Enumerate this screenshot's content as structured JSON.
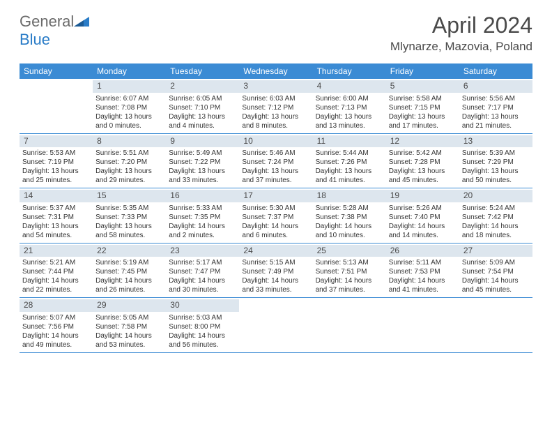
{
  "logo": {
    "textGray": "General",
    "textBlue": "Blue"
  },
  "title": "April 2024",
  "location": "Mlynarze, Mazovia, Poland",
  "colors": {
    "headerBar": "#3b8bd4",
    "dayNumBg": "#dde6ee",
    "borderColor": "#3b8bd4",
    "textColor": "#333333",
    "titleColor": "#4a4a4a",
    "logoGray": "#6b6b6b",
    "logoBlue": "#2a7cc7",
    "background": "#ffffff"
  },
  "dayNames": [
    "Sunday",
    "Monday",
    "Tuesday",
    "Wednesday",
    "Thursday",
    "Friday",
    "Saturday"
  ],
  "weeks": [
    [
      {
        "num": "",
        "lines": []
      },
      {
        "num": "1",
        "lines": [
          "Sunrise: 6:07 AM",
          "Sunset: 7:08 PM",
          "Daylight: 13 hours and 0 minutes."
        ]
      },
      {
        "num": "2",
        "lines": [
          "Sunrise: 6:05 AM",
          "Sunset: 7:10 PM",
          "Daylight: 13 hours and 4 minutes."
        ]
      },
      {
        "num": "3",
        "lines": [
          "Sunrise: 6:03 AM",
          "Sunset: 7:12 PM",
          "Daylight: 13 hours and 8 minutes."
        ]
      },
      {
        "num": "4",
        "lines": [
          "Sunrise: 6:00 AM",
          "Sunset: 7:13 PM",
          "Daylight: 13 hours and 13 minutes."
        ]
      },
      {
        "num": "5",
        "lines": [
          "Sunrise: 5:58 AM",
          "Sunset: 7:15 PM",
          "Daylight: 13 hours and 17 minutes."
        ]
      },
      {
        "num": "6",
        "lines": [
          "Sunrise: 5:56 AM",
          "Sunset: 7:17 PM",
          "Daylight: 13 hours and 21 minutes."
        ]
      }
    ],
    [
      {
        "num": "7",
        "lines": [
          "Sunrise: 5:53 AM",
          "Sunset: 7:19 PM",
          "Daylight: 13 hours and 25 minutes."
        ]
      },
      {
        "num": "8",
        "lines": [
          "Sunrise: 5:51 AM",
          "Sunset: 7:20 PM",
          "Daylight: 13 hours and 29 minutes."
        ]
      },
      {
        "num": "9",
        "lines": [
          "Sunrise: 5:49 AM",
          "Sunset: 7:22 PM",
          "Daylight: 13 hours and 33 minutes."
        ]
      },
      {
        "num": "10",
        "lines": [
          "Sunrise: 5:46 AM",
          "Sunset: 7:24 PM",
          "Daylight: 13 hours and 37 minutes."
        ]
      },
      {
        "num": "11",
        "lines": [
          "Sunrise: 5:44 AM",
          "Sunset: 7:26 PM",
          "Daylight: 13 hours and 41 minutes."
        ]
      },
      {
        "num": "12",
        "lines": [
          "Sunrise: 5:42 AM",
          "Sunset: 7:28 PM",
          "Daylight: 13 hours and 45 minutes."
        ]
      },
      {
        "num": "13",
        "lines": [
          "Sunrise: 5:39 AM",
          "Sunset: 7:29 PM",
          "Daylight: 13 hours and 50 minutes."
        ]
      }
    ],
    [
      {
        "num": "14",
        "lines": [
          "Sunrise: 5:37 AM",
          "Sunset: 7:31 PM",
          "Daylight: 13 hours and 54 minutes."
        ]
      },
      {
        "num": "15",
        "lines": [
          "Sunrise: 5:35 AM",
          "Sunset: 7:33 PM",
          "Daylight: 13 hours and 58 minutes."
        ]
      },
      {
        "num": "16",
        "lines": [
          "Sunrise: 5:33 AM",
          "Sunset: 7:35 PM",
          "Daylight: 14 hours and 2 minutes."
        ]
      },
      {
        "num": "17",
        "lines": [
          "Sunrise: 5:30 AM",
          "Sunset: 7:37 PM",
          "Daylight: 14 hours and 6 minutes."
        ]
      },
      {
        "num": "18",
        "lines": [
          "Sunrise: 5:28 AM",
          "Sunset: 7:38 PM",
          "Daylight: 14 hours and 10 minutes."
        ]
      },
      {
        "num": "19",
        "lines": [
          "Sunrise: 5:26 AM",
          "Sunset: 7:40 PM",
          "Daylight: 14 hours and 14 minutes."
        ]
      },
      {
        "num": "20",
        "lines": [
          "Sunrise: 5:24 AM",
          "Sunset: 7:42 PM",
          "Daylight: 14 hours and 18 minutes."
        ]
      }
    ],
    [
      {
        "num": "21",
        "lines": [
          "Sunrise: 5:21 AM",
          "Sunset: 7:44 PM",
          "Daylight: 14 hours and 22 minutes."
        ]
      },
      {
        "num": "22",
        "lines": [
          "Sunrise: 5:19 AM",
          "Sunset: 7:45 PM",
          "Daylight: 14 hours and 26 minutes."
        ]
      },
      {
        "num": "23",
        "lines": [
          "Sunrise: 5:17 AM",
          "Sunset: 7:47 PM",
          "Daylight: 14 hours and 30 minutes."
        ]
      },
      {
        "num": "24",
        "lines": [
          "Sunrise: 5:15 AM",
          "Sunset: 7:49 PM",
          "Daylight: 14 hours and 33 minutes."
        ]
      },
      {
        "num": "25",
        "lines": [
          "Sunrise: 5:13 AM",
          "Sunset: 7:51 PM",
          "Daylight: 14 hours and 37 minutes."
        ]
      },
      {
        "num": "26",
        "lines": [
          "Sunrise: 5:11 AM",
          "Sunset: 7:53 PM",
          "Daylight: 14 hours and 41 minutes."
        ]
      },
      {
        "num": "27",
        "lines": [
          "Sunrise: 5:09 AM",
          "Sunset: 7:54 PM",
          "Daylight: 14 hours and 45 minutes."
        ]
      }
    ],
    [
      {
        "num": "28",
        "lines": [
          "Sunrise: 5:07 AM",
          "Sunset: 7:56 PM",
          "Daylight: 14 hours and 49 minutes."
        ]
      },
      {
        "num": "29",
        "lines": [
          "Sunrise: 5:05 AM",
          "Sunset: 7:58 PM",
          "Daylight: 14 hours and 53 minutes."
        ]
      },
      {
        "num": "30",
        "lines": [
          "Sunrise: 5:03 AM",
          "Sunset: 8:00 PM",
          "Daylight: 14 hours and 56 minutes."
        ]
      },
      {
        "num": "",
        "lines": []
      },
      {
        "num": "",
        "lines": []
      },
      {
        "num": "",
        "lines": []
      },
      {
        "num": "",
        "lines": []
      }
    ]
  ]
}
